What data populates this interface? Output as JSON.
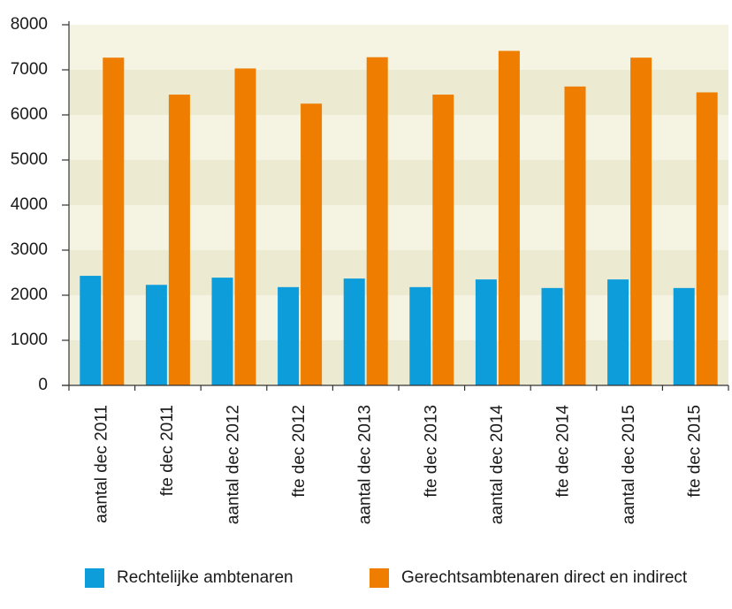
{
  "chart_data": {
    "type": "bar",
    "categories": [
      "aantal dec 2011",
      "fte dec 2011",
      "aantal dec 2012",
      "fte dec 2012",
      "aantal dec 2013",
      "fte dec 2013",
      "aantal dec 2014",
      "fte dec 2014",
      "aantal dec 2015",
      "fte dec 2015"
    ],
    "series": [
      {
        "name": "Rechtelijke ambtenaren",
        "color": "#0d9ddb",
        "values": [
          2430,
          2230,
          2390,
          2180,
          2370,
          2180,
          2350,
          2160,
          2350,
          2160
        ]
      },
      {
        "name": "Gerechtsambtenaren direct en indirect",
        "color": "#ee7d00",
        "values": [
          7270,
          6450,
          7030,
          6250,
          7280,
          6450,
          7420,
          6630,
          7270,
          6500
        ]
      }
    ],
    "yticks": [
      0,
      1000,
      2000,
      3000,
      4000,
      5000,
      6000,
      7000,
      8000
    ],
    "ylim": [
      0,
      8000
    ],
    "title": "",
    "xlabel": "",
    "ylabel": "",
    "grid": true,
    "legend_position": "bottom",
    "band_colors": [
      "#f5f4e3",
      "#ecebd2"
    ]
  }
}
